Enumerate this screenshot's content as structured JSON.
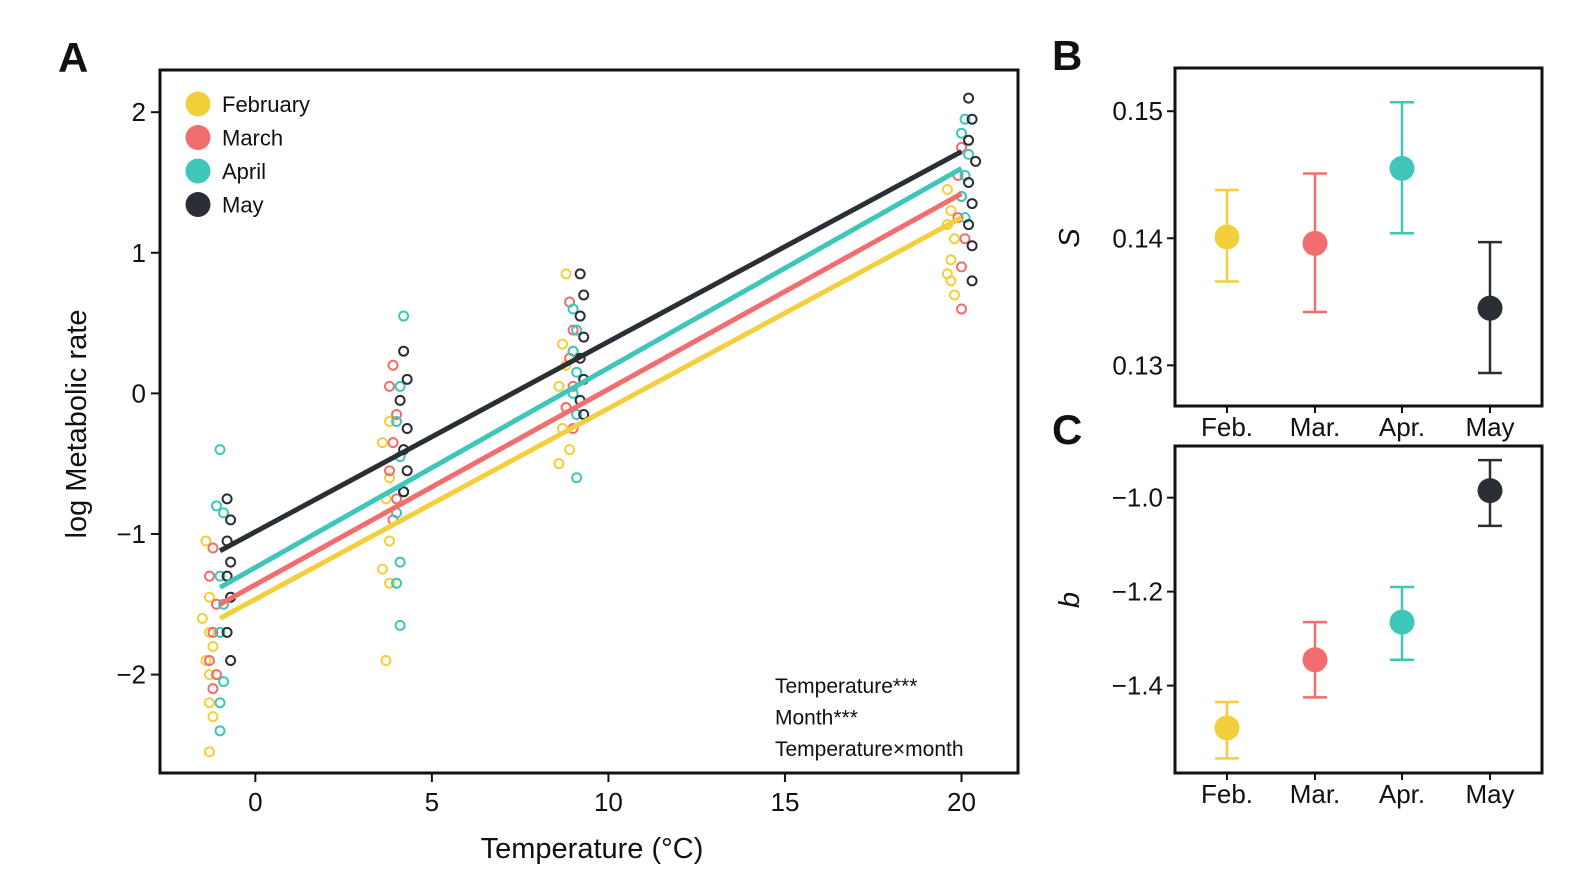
{
  "colors": {
    "February": "#f2cf3b",
    "March": "#f26d6d",
    "April": "#3ec6b8",
    "May": "#2a2e35"
  },
  "chart_data": [
    {
      "panel": "A",
      "type": "scatter",
      "xlabel": "Temperature (°C)",
      "ylabel": "log Metabolic rate",
      "xlim": [
        -2.7,
        21.6
      ],
      "ylim": [
        -2.7,
        2.3
      ],
      "xticks": [
        "0",
        "5",
        "10",
        "15",
        "20"
      ],
      "yticks": [
        "−2",
        "−1",
        "0",
        "1",
        "2"
      ],
      "legend": [
        "February",
        "March",
        "April",
        "May"
      ],
      "legend_position": "top-left",
      "annotations": [
        "Temperature***",
        "Month***",
        "Temperature×month"
      ],
      "series": [
        {
          "name": "February",
          "line": {
            "x": [
              -1,
              20
            ],
            "y": [
              -1.6,
              1.25
            ]
          },
          "points": [
            [
              -1.4,
              -1.05
            ],
            [
              -1.3,
              -1.3
            ],
            [
              -1.3,
              -1.45
            ],
            [
              -1.5,
              -1.6
            ],
            [
              -1.3,
              -1.7
            ],
            [
              -1.2,
              -1.8
            ],
            [
              -1.4,
              -1.9
            ],
            [
              -1.3,
              -2.0
            ],
            [
              -1.2,
              -2.1
            ],
            [
              -1.3,
              -2.2
            ],
            [
              -1.2,
              -2.3
            ],
            [
              -1.3,
              -2.55
            ],
            [
              3.8,
              -0.2
            ],
            [
              3.6,
              -0.35
            ],
            [
              3.8,
              -0.6
            ],
            [
              3.7,
              -0.75
            ],
            [
              3.9,
              -0.9
            ],
            [
              3.8,
              -1.05
            ],
            [
              3.6,
              -1.25
            ],
            [
              3.8,
              -1.35
            ],
            [
              3.7,
              -1.9
            ],
            [
              8.8,
              0.85
            ],
            [
              8.7,
              0.35
            ],
            [
              8.8,
              0.2
            ],
            [
              8.6,
              0.05
            ],
            [
              8.8,
              -0.1
            ],
            [
              8.7,
              -0.25
            ],
            [
              8.9,
              -0.4
            ],
            [
              8.6,
              -0.5
            ],
            [
              19.6,
              1.45
            ],
            [
              19.7,
              1.3
            ],
            [
              19.6,
              1.2
            ],
            [
              19.8,
              1.1
            ],
            [
              19.7,
              0.95
            ],
            [
              19.6,
              0.85
            ],
            [
              19.7,
              0.8
            ],
            [
              19.8,
              0.7
            ]
          ]
        },
        {
          "name": "March",
          "line": {
            "x": [
              -1,
              20
            ],
            "y": [
              -1.5,
              1.42
            ]
          },
          "points": [
            [
              -1.2,
              -1.1
            ],
            [
              -1.3,
              -1.3
            ],
            [
              -1.1,
              -1.5
            ],
            [
              -1.2,
              -1.7
            ],
            [
              -1.3,
              -1.9
            ],
            [
              -1.1,
              -2.0
            ],
            [
              -1.2,
              -2.1
            ],
            [
              3.9,
              0.2
            ],
            [
              3.8,
              0.05
            ],
            [
              4.0,
              -0.15
            ],
            [
              3.9,
              -0.35
            ],
            [
              3.8,
              -0.55
            ],
            [
              4.0,
              -0.75
            ],
            [
              3.9,
              -0.9
            ],
            [
              8.9,
              0.65
            ],
            [
              9.0,
              0.45
            ],
            [
              8.9,
              0.25
            ],
            [
              9.0,
              0.05
            ],
            [
              8.8,
              -0.1
            ],
            [
              9.0,
              -0.25
            ],
            [
              20.0,
              1.75
            ],
            [
              19.9,
              1.55
            ],
            [
              20.0,
              1.4
            ],
            [
              19.9,
              1.25
            ],
            [
              20.1,
              1.1
            ],
            [
              20.0,
              0.9
            ],
            [
              20.0,
              0.6
            ]
          ]
        },
        {
          "name": "April",
          "line": {
            "x": [
              -1,
              20
            ],
            "y": [
              -1.38,
              1.6
            ]
          },
          "points": [
            [
              -1.0,
              -0.4
            ],
            [
              -1.1,
              -0.8
            ],
            [
              -0.9,
              -0.85
            ],
            [
              -1.0,
              -1.3
            ],
            [
              -0.9,
              -1.5
            ],
            [
              -1.0,
              -1.7
            ],
            [
              -0.9,
              -2.05
            ],
            [
              -1.0,
              -2.2
            ],
            [
              -1.0,
              -2.4
            ],
            [
              4.2,
              0.55
            ],
            [
              4.1,
              0.05
            ],
            [
              4.0,
              -0.2
            ],
            [
              4.1,
              -0.45
            ],
            [
              4.2,
              -0.7
            ],
            [
              4.0,
              -0.85
            ],
            [
              4.1,
              -1.2
            ],
            [
              4.0,
              -1.35
            ],
            [
              4.1,
              -1.65
            ],
            [
              9.0,
              0.6
            ],
            [
              9.1,
              0.45
            ],
            [
              9.0,
              0.3
            ],
            [
              9.1,
              0.15
            ],
            [
              9.0,
              0.0
            ],
            [
              9.1,
              -0.15
            ],
            [
              9.1,
              -0.6
            ],
            [
              20.1,
              1.95
            ],
            [
              20.0,
              1.85
            ],
            [
              20.2,
              1.7
            ],
            [
              20.1,
              1.55
            ],
            [
              20.0,
              1.4
            ],
            [
              20.1,
              1.25
            ]
          ]
        },
        {
          "name": "May",
          "line": {
            "x": [
              -1,
              20
            ],
            "y": [
              -1.12,
              1.72
            ]
          },
          "points": [
            [
              -0.8,
              -0.75
            ],
            [
              -0.7,
              -0.9
            ],
            [
              -0.8,
              -1.05
            ],
            [
              -0.7,
              -1.2
            ],
            [
              -0.8,
              -1.3
            ],
            [
              -0.7,
              -1.45
            ],
            [
              -0.8,
              -1.7
            ],
            [
              -0.7,
              -1.9
            ],
            [
              4.2,
              0.3
            ],
            [
              4.3,
              0.1
            ],
            [
              4.1,
              -0.05
            ],
            [
              4.3,
              -0.25
            ],
            [
              4.2,
              -0.4
            ],
            [
              4.3,
              -0.55
            ],
            [
              4.2,
              -0.7
            ],
            [
              9.2,
              0.85
            ],
            [
              9.3,
              0.7
            ],
            [
              9.2,
              0.55
            ],
            [
              9.3,
              0.4
            ],
            [
              9.2,
              0.25
            ],
            [
              9.3,
              0.1
            ],
            [
              9.2,
              -0.05
            ],
            [
              9.3,
              -0.15
            ],
            [
              20.2,
              2.1
            ],
            [
              20.3,
              1.95
            ],
            [
              20.2,
              1.8
            ],
            [
              20.4,
              1.65
            ],
            [
              20.2,
              1.5
            ],
            [
              20.3,
              1.35
            ],
            [
              20.2,
              1.2
            ],
            [
              20.3,
              1.05
            ],
            [
              20.3,
              0.8
            ]
          ]
        }
      ]
    },
    {
      "panel": "B",
      "type": "scatter",
      "xlabel": "",
      "ylabel": "S",
      "categories": [
        "Feb.",
        "Mar.",
        "Apr.",
        "May"
      ],
      "yticks": [
        "0.13",
        "0.14",
        "0.15"
      ],
      "ylim": [
        0.1268,
        0.1534
      ],
      "series": [
        {
          "name": "February",
          "value": 0.1401,
          "lower": 0.1366,
          "upper": 0.1438
        },
        {
          "name": "March",
          "value": 0.1396,
          "lower": 0.1342,
          "upper": 0.1451
        },
        {
          "name": "April",
          "value": 0.1455,
          "lower": 0.1404,
          "upper": 0.1507
        },
        {
          "name": "May",
          "value": 0.1345,
          "lower": 0.1294,
          "upper": 0.1397
        }
      ]
    },
    {
      "panel": "C",
      "type": "scatter",
      "xlabel": "",
      "ylabel": "b",
      "categories": [
        "Feb.",
        "Mar.",
        "Apr.",
        "May"
      ],
      "yticks": [
        "−1.4",
        "−1.2",
        "−1.0"
      ],
      "ylim": [
        -1.586,
        -0.89
      ],
      "series": [
        {
          "name": "February",
          "value": -1.49,
          "lower": -1.555,
          "upper": -1.435
        },
        {
          "name": "March",
          "value": -1.345,
          "lower": -1.425,
          "upper": -1.265
        },
        {
          "name": "April",
          "value": -1.265,
          "lower": -1.345,
          "upper": -1.19
        },
        {
          "name": "May",
          "value": -0.985,
          "lower": -1.06,
          "upper": -0.92
        }
      ]
    }
  ]
}
